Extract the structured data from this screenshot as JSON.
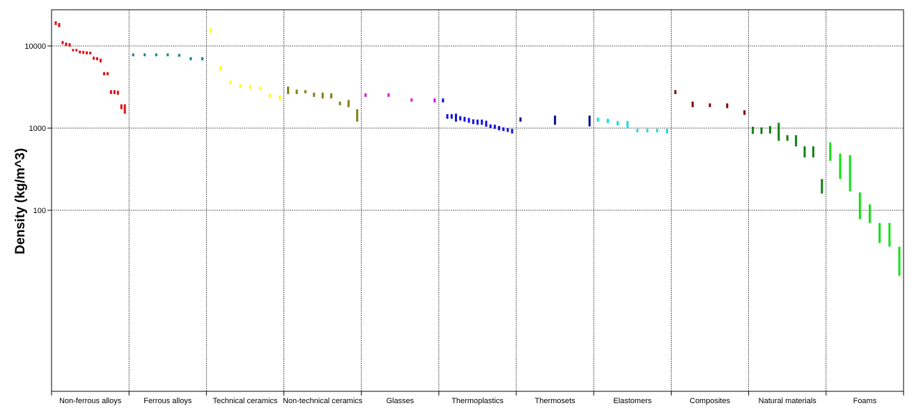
{
  "chart_data": {
    "type": "range",
    "ylabel": "Density (kg/m^3)",
    "yscale": "log",
    "ylim": [
      15,
      20000
    ],
    "yticks": [
      {
        "value": 100,
        "label": "100"
      },
      {
        "value": 1000,
        "label": "1000"
      },
      {
        "value": 10000,
        "label": "10000"
      }
    ],
    "grid": true,
    "categories": [
      {
        "name": "Non-ferrous alloys",
        "color": "#e01010",
        "bars": [
          [
            18000,
            20000
          ],
          [
            17000,
            19000
          ],
          [
            10500,
            11500
          ],
          [
            10000,
            11000
          ],
          [
            9800,
            10800
          ],
          [
            8600,
            9200
          ],
          [
            8600,
            9200
          ],
          [
            8100,
            8800
          ],
          [
            8000,
            8700
          ],
          [
            7900,
            8600
          ],
          [
            7900,
            8500
          ],
          [
            6800,
            7400
          ],
          [
            6700,
            7300
          ],
          [
            6300,
            7000
          ],
          [
            4400,
            4800
          ],
          [
            4400,
            4800
          ],
          [
            2600,
            2900
          ],
          [
            2600,
            2900
          ],
          [
            2550,
            2850
          ],
          [
            1700,
            1950
          ],
          [
            1500,
            1950
          ]
        ]
      },
      {
        "name": "Ferrous alloys",
        "color": "#108080",
        "bars": [
          [
            7500,
            8100
          ],
          [
            7500,
            8100
          ],
          [
            7500,
            8100
          ],
          [
            7500,
            8100
          ],
          [
            7400,
            8000
          ],
          [
            6700,
            7300
          ],
          [
            6700,
            7300
          ]
        ]
      },
      {
        "name": "Technical ceramics",
        "color": "#ffff10",
        "bars": [
          [
            14500,
            16500
          ],
          [
            5000,
            5700
          ],
          [
            3450,
            3800
          ],
          [
            3100,
            3400
          ],
          [
            3000,
            3350
          ],
          [
            2900,
            3200
          ],
          [
            2350,
            2600
          ],
          [
            2200,
            2500
          ]
        ]
      },
      {
        "name": "Non-technical ceramics",
        "color": "#808010",
        "bars": [
          [
            2600,
            3200
          ],
          [
            2600,
            2950
          ],
          [
            2650,
            2900
          ],
          [
            2400,
            2700
          ],
          [
            2300,
            2700
          ],
          [
            2300,
            2650
          ],
          [
            1900,
            2100
          ],
          [
            1800,
            2200
          ],
          [
            1200,
            1700
          ]
        ]
      },
      {
        "name": "Glasses",
        "color": "#e010e0",
        "bars": [
          [
            2400,
            2650
          ],
          [
            2400,
            2650
          ],
          [
            2100,
            2300
          ],
          [
            2050,
            2300
          ]
        ]
      },
      {
        "name": "Thermoplastics",
        "color": "#1010e0",
        "bars": [
          [
            2050,
            2300
          ],
          [
            1300,
            1480
          ],
          [
            1300,
            1480
          ],
          [
            1200,
            1500
          ],
          [
            1240,
            1400
          ],
          [
            1200,
            1370
          ],
          [
            1160,
            1330
          ],
          [
            1120,
            1280
          ],
          [
            1100,
            1270
          ],
          [
            1100,
            1270
          ],
          [
            1040,
            1230
          ],
          [
            1000,
            1110
          ],
          [
            980,
            1100
          ],
          [
            940,
            1060
          ],
          [
            920,
            1020
          ],
          [
            900,
            1000
          ],
          [
            860,
            980
          ]
        ]
      },
      {
        "name": "Thermosets",
        "color": "#000890",
        "bars": [
          [
            1200,
            1350
          ],
          [
            1100,
            1420
          ],
          [
            1050,
            1420
          ]
        ]
      },
      {
        "name": "Elastomers",
        "color": "#10e0e0",
        "bars": [
          [
            1200,
            1340
          ],
          [
            1150,
            1300
          ],
          [
            1080,
            1220
          ],
          [
            1000,
            1220
          ],
          [
            890,
            980
          ],
          [
            890,
            980
          ],
          [
            890,
            980
          ],
          [
            860,
            980
          ]
        ]
      },
      {
        "name": "Composites",
        "color": "#800000",
        "bars": [
          [
            2600,
            2900
          ],
          [
            1800,
            2100
          ],
          [
            1800,
            2000
          ],
          [
            1750,
            2000
          ],
          [
            1450,
            1650
          ]
        ]
      },
      {
        "name": "Natural materials",
        "color": "#108010",
        "bars": [
          [
            850,
            1040
          ],
          [
            850,
            1020
          ],
          [
            860,
            1060
          ],
          [
            700,
            1160
          ],
          [
            700,
            820
          ],
          [
            600,
            820
          ],
          [
            440,
            600
          ],
          [
            440,
            600
          ],
          [
            160,
            240
          ]
        ]
      },
      {
        "name": "Foams",
        "color": "#10e010",
        "bars": [
          [
            400,
            670
          ],
          [
            240,
            490
          ],
          [
            170,
            470
          ],
          [
            78,
            165
          ],
          [
            70,
            118
          ],
          [
            40,
            70
          ],
          [
            36,
            70
          ],
          [
            16,
            36
          ]
        ]
      }
    ]
  },
  "series_colors": {
    "Non-ferrous alloys": "#e01010",
    "Ferrous alloys": "#108080",
    "Technical ceramics": "#ffff10",
    "Non-technical ceramics": "#808010",
    "Glasses": "#e010e0",
    "Thermoplastics": "#1010e0",
    "Thermosets": "#000890",
    "Elastomers": "#10e0e0",
    "Composites": "#800000",
    "Natural materials": "#108010",
    "Foams": "#10e010"
  }
}
